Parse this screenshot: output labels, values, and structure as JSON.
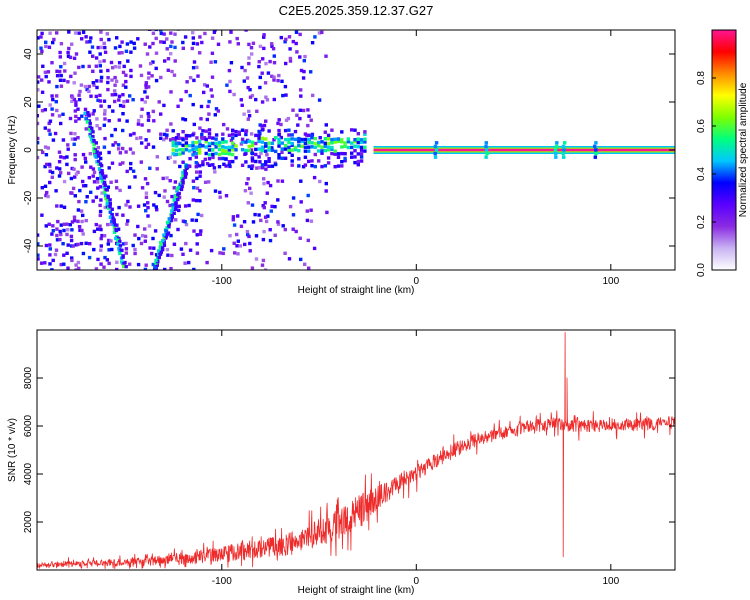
{
  "figure": {
    "title": "C2E5.2025.359.12.37.G27"
  },
  "chart_data": [
    {
      "type": "heatmap",
      "title": "",
      "xlabel": "Height of straight line (km)",
      "ylabel": "Frequency (Hz)",
      "xlim": [
        -195,
        133
      ],
      "ylim": [
        -50,
        50
      ],
      "x_ticks": [
        -100,
        0,
        100
      ],
      "y_ticks": [
        -40,
        -20,
        0,
        20,
        40
      ],
      "grid": false,
      "colorbar": {
        "label": "Normalized spectral amplitude",
        "range": [
          0,
          1
        ],
        "ticks": [
          0.0,
          0.2,
          0.4,
          0.6,
          0.8
        ],
        "colors": [
          "#ffffff",
          "#c9b3f2",
          "#8a2be2",
          "#5a00ff",
          "#0000ff",
          "#00c8ff",
          "#00ff7f",
          "#7fff00",
          "#ffff00",
          "#ff8c00",
          "#ff0000",
          "#ff1493"
        ]
      },
      "features": [
        {
          "name": "steady carrier",
          "x_range": [
            -22,
            133
          ],
          "frequency": 0,
          "amplitude": 1.0
        },
        {
          "name": "broadband noise",
          "x_range": [
            -195,
            -60
          ],
          "frequency_range": [
            -50,
            50
          ],
          "amplitude": 0.35
        },
        {
          "name": "descending trace",
          "x_start": -170,
          "x_end": -150,
          "frequency_start": 15,
          "frequency_end": -50,
          "amplitude": 0.5
        },
        {
          "name": "ascending trace",
          "x_start": -135,
          "x_end": -118,
          "frequency_start": -50,
          "frequency_end": -5,
          "amplitude": 0.5
        },
        {
          "name": "transition band",
          "x_range": [
            -125,
            -25
          ],
          "frequency_range": [
            -3,
            5
          ],
          "amplitude": 0.45
        }
      ]
    },
    {
      "type": "line",
      "title": "",
      "xlabel": "Height of straight line (km)",
      "ylabel": "SNR (10 * v/v)",
      "xlim": [
        -195,
        133
      ],
      "ylim": [
        0,
        10000
      ],
      "x_ticks": [
        -100,
        0,
        100
      ],
      "y_ticks": [
        2000,
        4000,
        6000,
        8000
      ],
      "grid": false,
      "series": [
        {
          "color": "#ee2a2a",
          "x": [
            -195,
            -180,
            -160,
            -140,
            -120,
            -100,
            -90,
            -80,
            -70,
            -60,
            -50,
            -40,
            -30,
            -20,
            -10,
            0,
            10,
            20,
            30,
            40,
            50,
            60,
            70,
            76,
            80,
            90,
            100,
            110,
            120,
            133
          ],
          "y": [
            200,
            250,
            300,
            350,
            450,
            650,
            800,
            900,
            1000,
            1200,
            1550,
            1900,
            2350,
            3000,
            3500,
            4000,
            4550,
            5000,
            5400,
            5600,
            5800,
            6000,
            6100,
            6100,
            6000,
            6000,
            6050,
            6050,
            6100,
            6150
          ],
          "noise_amplitude": [
            150,
            170,
            200,
            250,
            330,
            460,
            520,
            570,
            630,
            700,
            800,
            900,
            1050,
            700,
            550,
            500,
            450,
            420,
            400,
            380,
            380,
            380,
            380,
            380,
            380,
            380,
            380,
            380,
            380,
            380
          ],
          "spikes": [
            {
              "x": 76.5,
              "y": 9900
            },
            {
              "x": 75.5,
              "y": 550
            },
            {
              "x": 77.5,
              "y": 8000
            }
          ]
        }
      ]
    }
  ]
}
